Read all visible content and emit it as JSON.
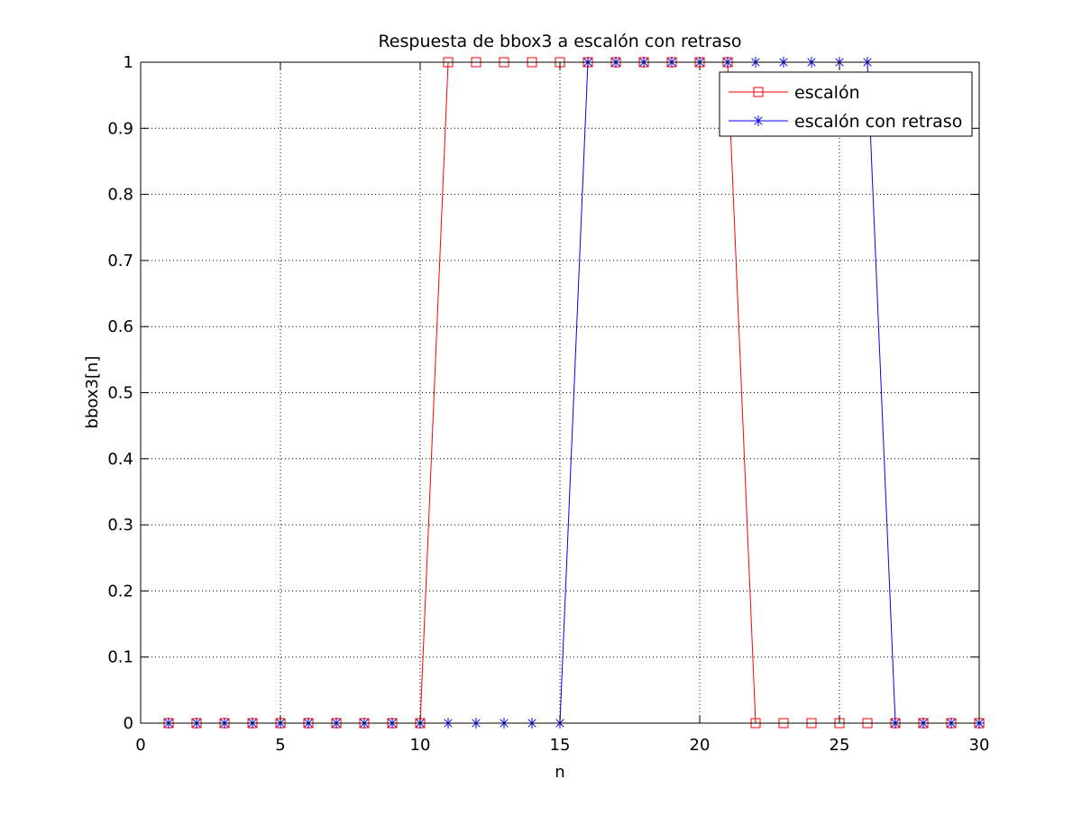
{
  "chart_data": {
    "type": "line",
    "title": "Respuesta de bbox3 a escalón con retraso",
    "xlabel": "n",
    "ylabel": "bbox3[n]",
    "xlim": [
      0,
      30
    ],
    "ylim": [
      0,
      1
    ],
    "xticks": [
      "0",
      "5",
      "10",
      "15",
      "20",
      "25",
      "30"
    ],
    "yticks": [
      "0",
      "0.1",
      "0.2",
      "0.3",
      "0.4",
      "0.5",
      "0.6",
      "0.7",
      "0.8",
      "0.9",
      "1"
    ],
    "grid": true,
    "legend_position": "top-right",
    "x": [
      1,
      2,
      3,
      4,
      5,
      6,
      7,
      8,
      9,
      10,
      11,
      12,
      13,
      14,
      15,
      16,
      17,
      18,
      19,
      20,
      21,
      22,
      23,
      24,
      25,
      26,
      27,
      28,
      29,
      30
    ],
    "series": [
      {
        "name": "escalón",
        "color": "#ff0000",
        "marker": "square",
        "values": [
          0,
          0,
          0,
          0,
          0,
          0,
          0,
          0,
          0,
          0,
          1,
          1,
          1,
          1,
          1,
          1,
          1,
          1,
          1,
          1,
          1,
          0,
          0,
          0,
          0,
          0,
          0,
          0,
          0,
          0
        ]
      },
      {
        "name": "escalón con retraso",
        "color": "#0000ff",
        "marker": "asterisk",
        "values": [
          0,
          0,
          0,
          0,
          0,
          0,
          0,
          0,
          0,
          0,
          0,
          0,
          0,
          0,
          0,
          1,
          1,
          1,
          1,
          1,
          1,
          1,
          1,
          1,
          1,
          1,
          0,
          0,
          0,
          0
        ]
      }
    ]
  }
}
